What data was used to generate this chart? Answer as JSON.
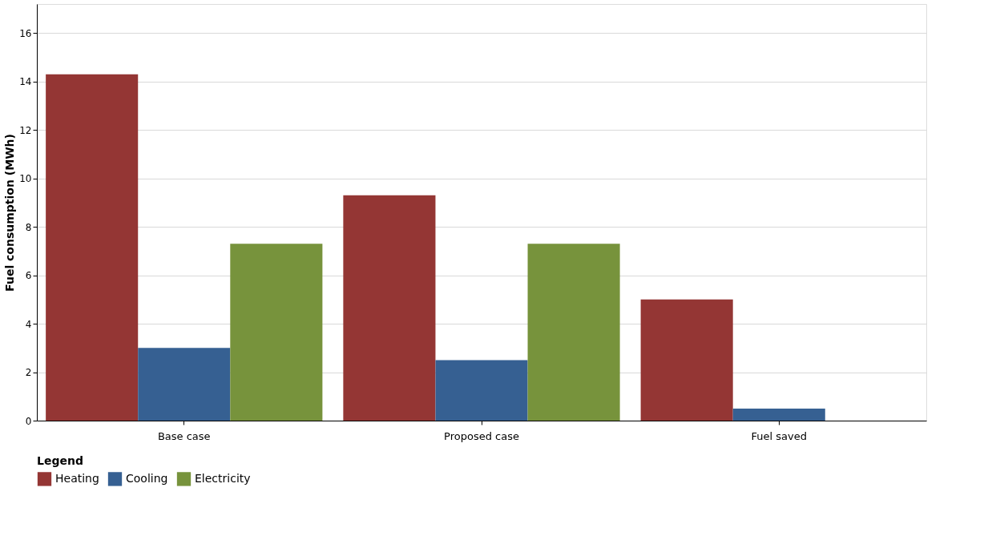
{
  "chart_data": {
    "type": "bar",
    "ylabel": "Fuel consumption (MWh)",
    "legend_title": "Legend",
    "categories": [
      "Base case",
      "Proposed case",
      "Fuel saved"
    ],
    "series": [
      {
        "name": "Heating",
        "color": "#943634",
        "values": [
          14.3,
          9.3,
          5.0
        ]
      },
      {
        "name": "Cooling",
        "color": "#366092",
        "values": [
          3.0,
          2.5,
          0.5
        ]
      },
      {
        "name": "Electricity",
        "color": "#77933c",
        "values": [
          7.3,
          7.3,
          0
        ]
      }
    ],
    "ylim": [
      0,
      17.2
    ],
    "yticks": [
      0,
      2,
      4,
      6,
      8,
      10,
      12,
      14,
      16
    ],
    "grid": "y",
    "legend": "bottom"
  }
}
